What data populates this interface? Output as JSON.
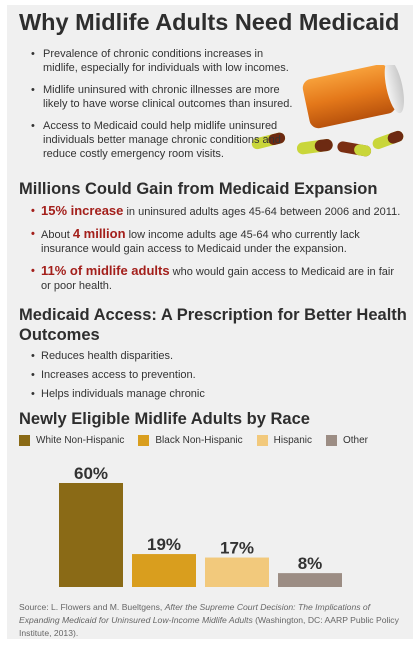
{
  "title": "Why Midlife Adults Need Medicaid",
  "intro_bullets": [
    "Prevalence of chronic conditions increases in midlife, especially for individuals with low incomes.",
    "Midlife uninsured with chronic illnesses are more likely to have worse clinical outcomes than insured.",
    "Access to Medicaid could help midlife uninsured individuals better manage chronic conditions and reduce costly emergency room visits."
  ],
  "section2": {
    "heading": "Millions Could Gain from Medicaid Expansion",
    "items": [
      {
        "highlight": "15% increase",
        "text": " in uninsured adults ages 45-64 between 2006 and 2011."
      },
      {
        "pre": "About ",
        "highlight": "4 million",
        "text": " low income adults age 45-64 who currently lack insurance would gain access to Medicaid under the expansion."
      },
      {
        "highlight": "11% of midlife adults",
        "text": " who would gain access to Medicaid are in fair or poor health."
      }
    ]
  },
  "section3": {
    "heading": "Medicaid Access: A Prescription for Better Health Outcomes",
    "items": [
      "Reduces health disparities.",
      "Increases access to prevention.",
      "Helps individuals manage chronic"
    ]
  },
  "chart_data": {
    "type": "bar",
    "title": "Newly Eligible Midlife Adults by Race",
    "categories": [
      "White Non-Hispanic",
      "Black Non-Hispanic",
      "Hispanic",
      "Other"
    ],
    "values": [
      60,
      19,
      17,
      8
    ],
    "value_labels": [
      "60%",
      "19%",
      "17%",
      "8%"
    ],
    "colors": [
      "#8a6a16",
      "#d99e1e",
      "#f2c97c",
      "#9c8d84"
    ],
    "unit": "%",
    "legend_position": "top",
    "grid": false
  },
  "source": {
    "prefix": "Source: L. Flowers and M. Bueltgens, ",
    "title_italic": "After the Supreme Court Decision: The Implications of Expanding Medicaid for Uninsured Low-Income Midlife Adults",
    "suffix": " (Washington, DC: AARP Public Policy Institute, 2013)."
  },
  "icons": {
    "pill_image": "prescription-bottle-and-pills"
  }
}
